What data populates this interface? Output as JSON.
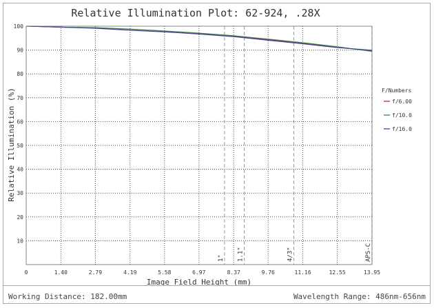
{
  "footer": {
    "working_distance": "Working Distance: 182.00mm",
    "wavelength_range": "Wavelength Range: 486nm-656nm"
  },
  "chart_data": {
    "type": "line",
    "title": "Relative Illumination Plot: 62-924, .28X",
    "xlabel": "Image Field Height (mm)",
    "ylabel": "Relative Illumination (%)",
    "xlim": [
      0,
      13.95
    ],
    "ylim": [
      0,
      100
    ],
    "x_ticks": [
      0,
      1.4,
      2.79,
      4.19,
      5.58,
      6.97,
      8.37,
      9.76,
      11.16,
      12.55,
      13.95
    ],
    "x_tick_labels": [
      "0",
      "1.40",
      "2.79",
      "4.19",
      "5.58",
      "6.97",
      "8.37",
      "9.76",
      "11.16",
      "12.55",
      "13.95"
    ],
    "y_ticks": [
      0,
      10,
      20,
      30,
      40,
      50,
      60,
      70,
      80,
      90,
      100
    ],
    "y_tick_labels": [
      "",
      "10",
      "20",
      "30",
      "40",
      "50",
      "60",
      "70",
      "80",
      "90",
      "100"
    ],
    "grid": true,
    "legend": {
      "title": "F/Numbers",
      "placement": "right"
    },
    "sensor_markers": [
      {
        "label": "1\"",
        "x": 8.0
      },
      {
        "label": "1.1\"",
        "x": 8.8
      },
      {
        "label": "4/3\"",
        "x": 10.8
      },
      {
        "label": "APS-C",
        "x": 13.95
      }
    ],
    "x": [
      0,
      1.4,
      2.79,
      4.19,
      5.58,
      6.97,
      8.37,
      9.76,
      11.16,
      12.55,
      13.95
    ],
    "series": [
      {
        "name": "f/6.00",
        "color": "#c0282d",
        "values": [
          100,
          99.6,
          99.3,
          98.7,
          97.9,
          97.0,
          95.9,
          94.4,
          92.9,
          91.2,
          89.6
        ]
      },
      {
        "name": "f/10.0",
        "color": "#2f8f2f",
        "values": [
          100,
          99.6,
          99.4,
          98.8,
          98.0,
          97.1,
          96.0,
          94.6,
          93.1,
          91.4,
          89.4
        ]
      },
      {
        "name": "f/16.0",
        "color": "#3a3ab8",
        "values": [
          100,
          99.6,
          99.1,
          98.3,
          97.6,
          96.7,
          95.6,
          94.1,
          92.6,
          91.0,
          89.9
        ]
      }
    ]
  }
}
